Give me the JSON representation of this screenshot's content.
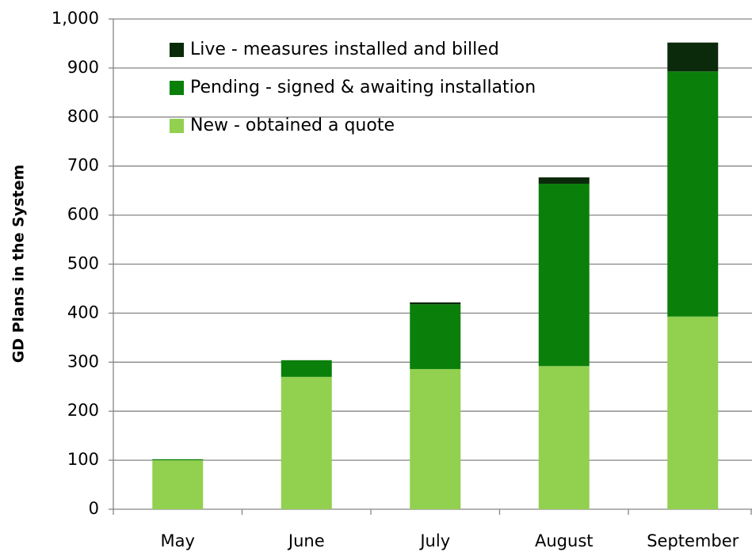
{
  "chart_data": {
    "type": "stacked_bar",
    "ylabel": "GD Plans in the System",
    "categories": [
      "May",
      "June",
      "July",
      "August",
      "September"
    ],
    "series": [
      {
        "name": "New - obtained a quote",
        "color": "#92d050",
        "values": [
          100,
          270,
          286,
          292,
          393
        ]
      },
      {
        "name": "Pending - signed & awaiting installation",
        "color": "#0a800a",
        "values": [
          2,
          34,
          132,
          372,
          500
        ]
      },
      {
        "name": "Live - measures installed and billed",
        "color": "#0b2a0b",
        "values": [
          0,
          0,
          4,
          13,
          59
        ]
      }
    ],
    "ylim": [
      0,
      1000
    ],
    "yticks": [
      0,
      100,
      200,
      300,
      400,
      500,
      600,
      700,
      800,
      900,
      {
        "value": 1000,
        "label": "1,000"
      }
    ],
    "grid": true,
    "legend": "top-left"
  }
}
